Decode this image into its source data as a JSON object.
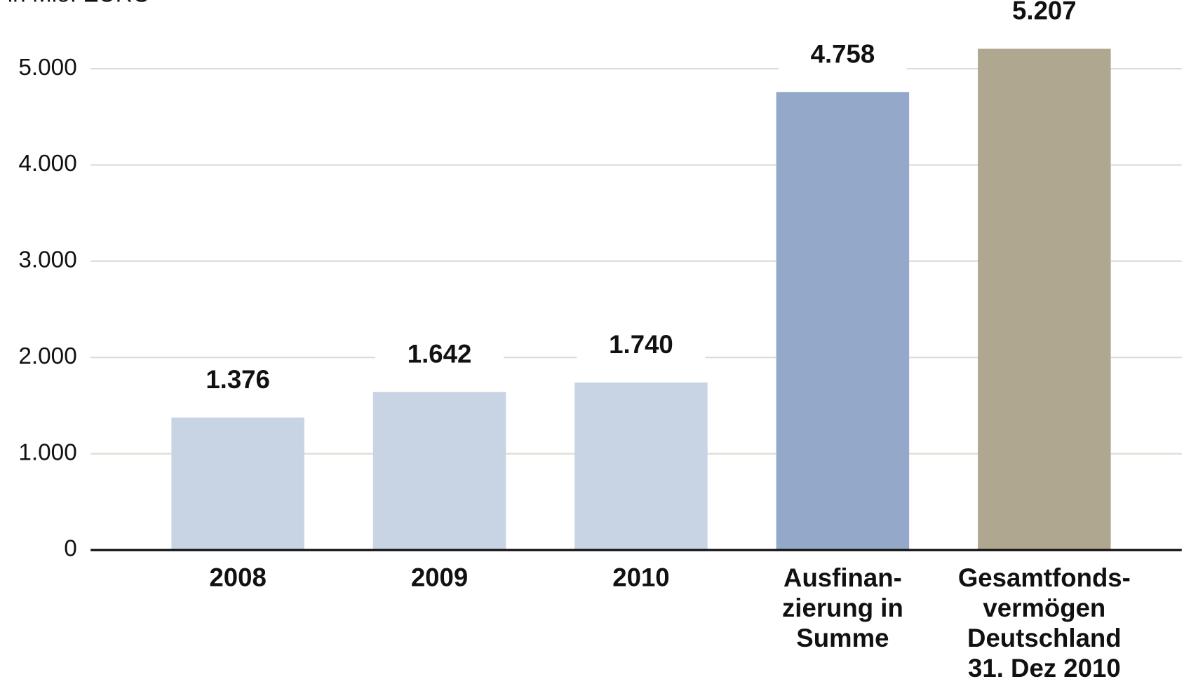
{
  "chart_data": {
    "type": "bar",
    "subtitle": "in Mio. EURO",
    "categories": [
      "2008",
      "2009",
      "2010",
      "Ausfinan-\nzierung in\nSumme",
      "Gesamtfonds-\nvermögen\nDeutschland\n31. Dez 2010"
    ],
    "values": [
      1376,
      1642,
      1740,
      4758,
      5207
    ],
    "value_labels": [
      "1.376",
      "1.642",
      "1.740",
      "4.758",
      "5.207"
    ],
    "colors": [
      "#c8d4e4",
      "#c8d4e4",
      "#c8d4e4",
      "#94a9c9",
      "#b0a790"
    ],
    "ylim": [
      0,
      5500
    ],
    "yticks": [
      0,
      {
        "value": 1000,
        "label": "1.000"
      },
      {
        "value": 2000,
        "label": "2.000"
      },
      {
        "value": 3000,
        "label": "3.000"
      },
      {
        "value": 4000,
        "label": "4.000"
      },
      {
        "value": 5000,
        "label": "5.000"
      }
    ],
    "grid": true
  }
}
